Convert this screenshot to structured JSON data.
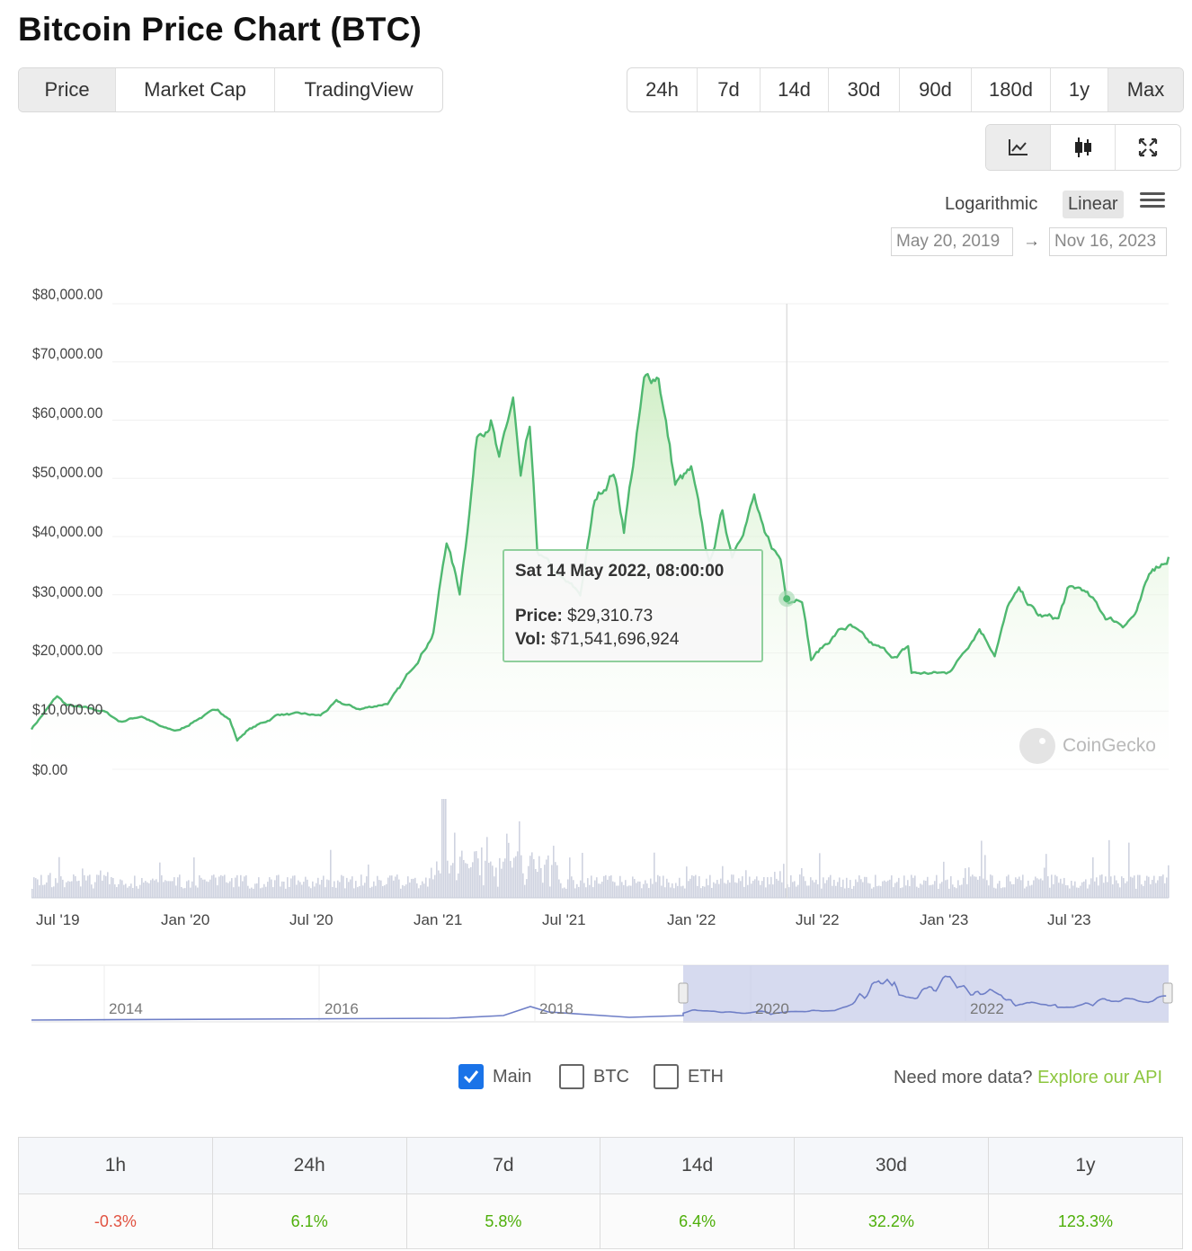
{
  "page": {
    "title": "Bitcoin Price Chart (BTC)"
  },
  "tabs": {
    "items": [
      {
        "label": "Price",
        "active": true
      },
      {
        "label": "Market Cap",
        "active": false
      },
      {
        "label": "TradingView",
        "active": false
      }
    ]
  },
  "ranges": {
    "items": [
      {
        "label": "24h",
        "active": false
      },
      {
        "label": "7d",
        "active": false
      },
      {
        "label": "14d",
        "active": false
      },
      {
        "label": "30d",
        "active": false
      },
      {
        "label": "90d",
        "active": false
      },
      {
        "label": "180d",
        "active": false
      },
      {
        "label": "1y",
        "active": false
      },
      {
        "label": "Max",
        "active": true
      }
    ]
  },
  "tools": {
    "line_icon": "line-chart-icon",
    "candle_icon": "candlestick-icon",
    "fullscreen_icon": "fullscreen-icon",
    "active": "line"
  },
  "scale": {
    "log_label": "Logarithmic",
    "linear_label": "Linear",
    "active": "Linear",
    "menu_icon": "hamburger-menu-icon"
  },
  "date_range": {
    "from": "May 20, 2019",
    "arrow": "→",
    "to": "Nov 16, 2023"
  },
  "chart_data": {
    "type": "area",
    "title": "",
    "xlabel": "",
    "ylabel": "",
    "ylim": [
      0,
      80000
    ],
    "y_ticks": [
      "$80,000.00",
      "$70,000.00",
      "$60,000.00",
      "$50,000.00",
      "$40,000.00",
      "$30,000.00",
      "$20,000.00",
      "$10,000.00",
      "$0.00"
    ],
    "x_ticks": [
      "Jul '19",
      "Jan '20",
      "Jul '20",
      "Jan '21",
      "Jul '21",
      "Jan '22",
      "Jul '22",
      "Jan '23",
      "Jul '23"
    ],
    "x_range": [
      "2019-05-20",
      "2023-11-16"
    ],
    "line_color": "#4fb870",
    "grid": true,
    "series": [
      {
        "values": [
          [
            "2019-05-20",
            7000
          ],
          [
            "2019-06-26",
            12500
          ],
          [
            "2019-07-10",
            11000
          ],
          [
            "2019-08-01",
            10500
          ],
          [
            "2019-09-01",
            10000
          ],
          [
            "2019-09-25",
            8200
          ],
          [
            "2019-10-26",
            9200
          ],
          [
            "2019-11-25",
            7100
          ],
          [
            "2019-12-18",
            6600
          ],
          [
            "2020-01-15",
            8700
          ],
          [
            "2020-02-13",
            10300
          ],
          [
            "2020-03-01",
            8600
          ],
          [
            "2020-03-12",
            5000
          ],
          [
            "2020-03-25",
            6600
          ],
          [
            "2020-04-30",
            8700
          ],
          [
            "2020-05-10",
            9500
          ],
          [
            "2020-06-15",
            9400
          ],
          [
            "2020-07-10",
            9200
          ],
          [
            "2020-08-02",
            11500
          ],
          [
            "2020-09-05",
            10300
          ],
          [
            "2020-10-15",
            11400
          ],
          [
            "2020-11-01",
            13800
          ],
          [
            "2020-11-25",
            18500
          ],
          [
            "2020-12-20",
            23500
          ],
          [
            "2021-01-08",
            39500
          ],
          [
            "2021-01-27",
            30400
          ],
          [
            "2021-02-10",
            44800
          ],
          [
            "2021-02-21",
            57500
          ],
          [
            "2021-03-13",
            61000
          ],
          [
            "2021-03-25",
            52500
          ],
          [
            "2021-04-14",
            63500
          ],
          [
            "2021-04-25",
            49500
          ],
          [
            "2021-05-08",
            57500
          ],
          [
            "2021-05-19",
            37000
          ],
          [
            "2021-06-22",
            32500
          ],
          [
            "2021-07-20",
            30000
          ],
          [
            "2021-08-10",
            46000
          ],
          [
            "2021-09-06",
            51500
          ],
          [
            "2021-09-21",
            41500
          ],
          [
            "2021-10-20",
            66000
          ],
          [
            "2021-11-10",
            68000
          ],
          [
            "2021-12-04",
            49000
          ],
          [
            "2021-12-27",
            51000
          ],
          [
            "2022-01-22",
            35000
          ],
          [
            "2022-02-10",
            44000
          ],
          [
            "2022-02-24",
            37000
          ],
          [
            "2022-03-28",
            47000
          ],
          [
            "2022-04-12",
            39500
          ],
          [
            "2022-05-05",
            36000
          ],
          [
            "2022-05-14",
            29310
          ],
          [
            "2022-06-05",
            30000
          ],
          [
            "2022-06-18",
            19000
          ],
          [
            "2022-07-30",
            24000
          ],
          [
            "2022-08-14",
            24500
          ],
          [
            "2022-09-10",
            21500
          ],
          [
            "2022-10-20",
            19200
          ],
          [
            "2022-11-05",
            21000
          ],
          [
            "2022-11-10",
            16500
          ],
          [
            "2022-12-30",
            16500
          ],
          [
            "2023-01-12",
            18000
          ],
          [
            "2023-02-16",
            24500
          ],
          [
            "2023-03-10",
            20000
          ],
          [
            "2023-03-31",
            28500
          ],
          [
            "2023-04-14",
            30400
          ],
          [
            "2023-05-12",
            26300
          ],
          [
            "2023-06-10",
            25800
          ],
          [
            "2023-06-23",
            30600
          ],
          [
            "2023-07-14",
            31000
          ],
          [
            "2023-08-17",
            26200
          ],
          [
            "2023-09-11",
            25000
          ],
          [
            "2023-10-01",
            27000
          ],
          [
            "2023-10-24",
            34500
          ],
          [
            "2023-11-16",
            36500
          ]
        ]
      }
    ],
    "volume_bars": true,
    "cursor_date": "2022-05-14"
  },
  "tooltip": {
    "date": "Sat 14 May 2022, 08:00:00",
    "price_label": "Price:",
    "price_value": "$29,310.73",
    "vol_label": "Vol:",
    "vol_value": "$71,541,696,924"
  },
  "watermark": {
    "text": "CoinGecko",
    "icon": "coingecko-logo-icon"
  },
  "navigator": {
    "labels": [
      "2014",
      "2016",
      "2018",
      "2020",
      "2022"
    ]
  },
  "series_toggles": [
    {
      "label": "Main",
      "checked": true
    },
    {
      "label": "BTC",
      "checked": false
    },
    {
      "label": "ETH",
      "checked": false
    }
  ],
  "api": {
    "prompt": "Need more data?",
    "link": "Explore our API"
  },
  "changes": {
    "headers": [
      "1h",
      "24h",
      "7d",
      "14d",
      "30d",
      "1y"
    ],
    "values": [
      "-0.3%",
      "6.1%",
      "5.8%",
      "6.4%",
      "32.2%",
      "123.3%"
    ]
  }
}
